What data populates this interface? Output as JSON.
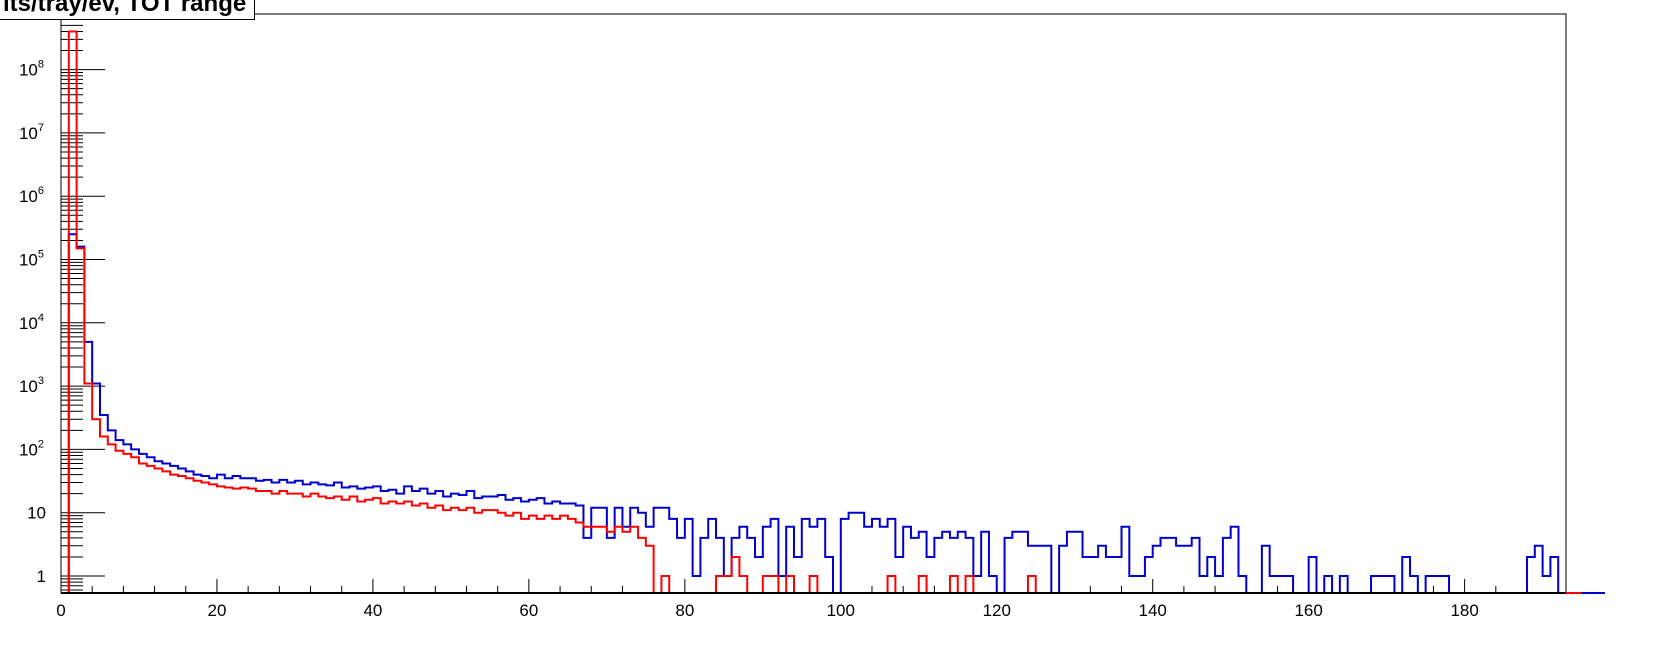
{
  "chart_data": {
    "type": "line",
    "title": "its/tray/ev, TOT range",
    "xlabel": "",
    "ylabel": "",
    "xlim": [
      0,
      193
    ],
    "ylim": [
      0.5,
      500000000
    ],
    "yscale": "log",
    "grid": false,
    "legend": "none",
    "x_ticks": [
      0,
      20,
      40,
      60,
      80,
      100,
      120,
      140,
      160,
      180
    ],
    "x_tick_labels": [
      "0",
      "20",
      "40",
      "60",
      "80",
      "100",
      "120",
      "140",
      "160",
      "180"
    ],
    "y_tick_labels": [
      {
        "value": 1,
        "base": "1",
        "exp": ""
      },
      {
        "value": 10,
        "base": "10",
        "exp": ""
      },
      {
        "value": 100,
        "base": "10",
        "exp": "2"
      },
      {
        "value": 1000,
        "base": "10",
        "exp": "3"
      },
      {
        "value": 10000,
        "base": "10",
        "exp": "4"
      },
      {
        "value": 100000,
        "base": "10",
        "exp": "5"
      },
      {
        "value": 1000000,
        "base": "10",
        "exp": "6"
      },
      {
        "value": 10000000,
        "base": "10",
        "exp": "7"
      },
      {
        "value": 100000000,
        "base": "10",
        "exp": "8"
      }
    ],
    "series": [
      {
        "color": "#0000cc",
        "bin_width": 1,
        "x_start": 1,
        "values": [
          250000,
          160000,
          5000,
          1100,
          350,
          200,
          140,
          120,
          100,
          85,
          75,
          65,
          60,
          55,
          50,
          45,
          40,
          38,
          35,
          40,
          35,
          38,
          35,
          35,
          32,
          33,
          30,
          33,
          30,
          32,
          28,
          30,
          28,
          27,
          30,
          25,
          26,
          24,
          25,
          26,
          22,
          23,
          20,
          26,
          22,
          24,
          20,
          22,
          18,
          20,
          19,
          22,
          17,
          18,
          18,
          19,
          16,
          17,
          15,
          16,
          17,
          14,
          15,
          14,
          14,
          13,
          4,
          12,
          12,
          4,
          12,
          6,
          12,
          10,
          6,
          12,
          12,
          8,
          4,
          8,
          1,
          4,
          8,
          4,
          1,
          4,
          6,
          4,
          2,
          6,
          8,
          1,
          6,
          2,
          8,
          6,
          8,
          2,
          0,
          8,
          10,
          10,
          6,
          8,
          6,
          8,
          2,
          6,
          4,
          5,
          2,
          4,
          5,
          4,
          5,
          4,
          1,
          5,
          1,
          0.5,
          4,
          5,
          5,
          3,
          3,
          3,
          0.5,
          3,
          5,
          5,
          2,
          2,
          3,
          2,
          2,
          6,
          1,
          1,
          2,
          3,
          4,
          4,
          3,
          3,
          4,
          1,
          2,
          1,
          4,
          6,
          1,
          0.5,
          0.5,
          3,
          1,
          1,
          1,
          0.5,
          0.5,
          2,
          0.5,
          1,
          0.5,
          1,
          0.5,
          0.5,
          0.5,
          1,
          1,
          1,
          0.5,
          2,
          1,
          0.5,
          1,
          1,
          1,
          0.5,
          0.5,
          0.5,
          0.5,
          0.5,
          0.5,
          0.5,
          0.5,
          0.5,
          0.5,
          2,
          3,
          1,
          2,
          0.5,
          0.5,
          0.5,
          0.5,
          0.5,
          0.5
        ]
      },
      {
        "color": "#ff0000",
        "bin_width": 1,
        "x_start": 1,
        "values": [
          400000000,
          150000,
          1100,
          300,
          160,
          120,
          95,
          85,
          75,
          60,
          55,
          50,
          45,
          40,
          38,
          35,
          32,
          30,
          28,
          26,
          25,
          24,
          25,
          24,
          22,
          22,
          20,
          22,
          20,
          20,
          18,
          20,
          18,
          17,
          18,
          16,
          18,
          15,
          16,
          17,
          14,
          15,
          14,
          15,
          13,
          14,
          12,
          13,
          11,
          12,
          11,
          12,
          10,
          11,
          11,
          10,
          9,
          10,
          8,
          9,
          8,
          9,
          8,
          9,
          8,
          7,
          6,
          6,
          6,
          5,
          6,
          5,
          6,
          4,
          3,
          0.5,
          1,
          0.5,
          0.5,
          0.5,
          0.5,
          0.5,
          0.5,
          1,
          1,
          2,
          1,
          0.5,
          0.5,
          1,
          1,
          0.5,
          1,
          0.5,
          0.5,
          1,
          0.5,
          0.5,
          0.5,
          0.5,
          0.5,
          0.5,
          0.5,
          0.5,
          0.5,
          1,
          0.5,
          0.5,
          0.5,
          1,
          0.5,
          0.5,
          0.5,
          1,
          0.5,
          1,
          0.5,
          0.5,
          0.5,
          0.5,
          0.5,
          0.5,
          0.5,
          1,
          0.5,
          0.5,
          0.5,
          0.5,
          0.5,
          0.5,
          0.5,
          0.5,
          0.5,
          0.5,
          0.5,
          0.5,
          0.5,
          0.5,
          0.5,
          0.5,
          0.5,
          0.5,
          0.5,
          0.5,
          0.5,
          0.5,
          0.5,
          0.5,
          0.5,
          0.5,
          0.5,
          0.5,
          0.5,
          0.5,
          0.5,
          0.5,
          0.5,
          0.5,
          0.5,
          0.5,
          0.5,
          0.5,
          0.5,
          0.5,
          0.5,
          0.5,
          0.5,
          0.5,
          0.5,
          0.5,
          0.5,
          0.5,
          0.5,
          0.5,
          0.5,
          0.5,
          0.5,
          0.5,
          0.5,
          0.5,
          0.5,
          0.5,
          0.5,
          0.5,
          0.5,
          0.5,
          0.5,
          0.5,
          0.5,
          0.5,
          0.5,
          0.5,
          0.5,
          0.5
        ]
      }
    ]
  }
}
